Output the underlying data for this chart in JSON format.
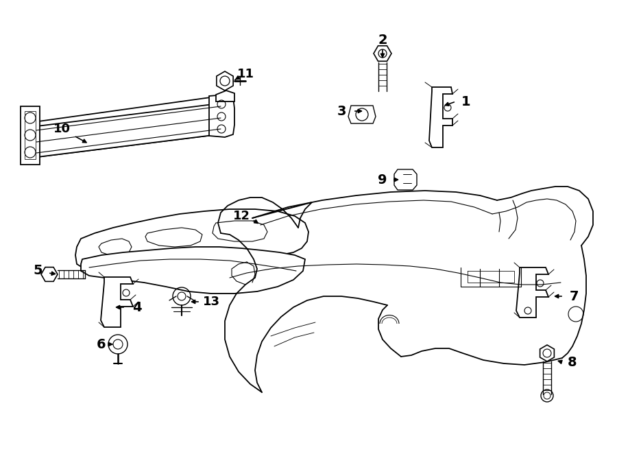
{
  "background_color": "#ffffff",
  "fig_width": 9.0,
  "fig_height": 6.62,
  "dpi": 100
}
